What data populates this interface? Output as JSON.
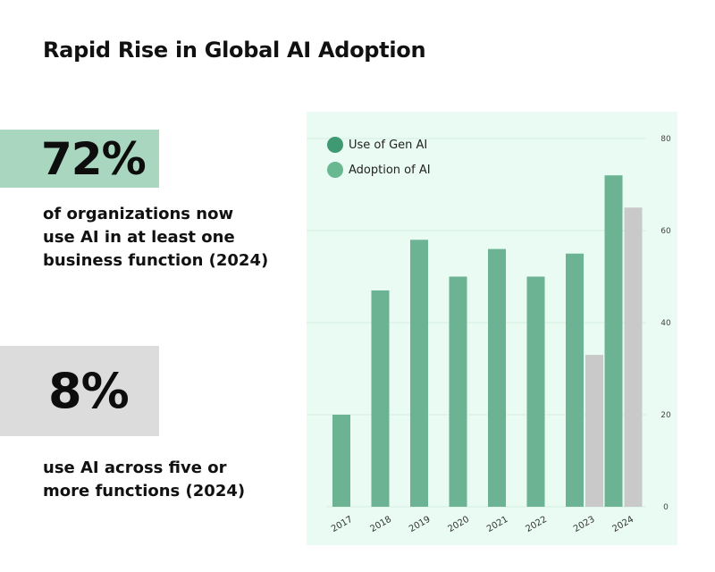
{
  "title": "Rapid Rise in Global AI Adoption",
  "stats": [
    {
      "value": "72%",
      "description_lines": [
        "of organizations now",
        "use AI in at least one",
        "business function (2024)"
      ],
      "box_color": "#a9d6bf"
    },
    {
      "value": "8%",
      "description_lines": [
        "use AI across five or",
        "more functions (2024)"
      ],
      "box_color": "#dcdcdc"
    }
  ],
  "colors": {
    "panel_bg": "#e9fbf2",
    "gen_ai_legend": "#3f9a74",
    "adoption_legend": "#6ab892",
    "green_bar": "#6bb393",
    "gray_bar": "#c9c9c9",
    "grid": "#d5efe2"
  },
  "chart_data": {
    "type": "bar",
    "title": "",
    "xlabel": "",
    "ylabel": "",
    "categories": [
      "2017",
      "2018",
      "2019",
      "2020",
      "2021",
      "2022",
      "2023",
      "2024"
    ],
    "series": [
      {
        "name": "Adoption of AI",
        "color": "#6bb393",
        "values": [
          20,
          47,
          58,
          50,
          56,
          50,
          55,
          72
        ]
      },
      {
        "name": "Use of Gen AI",
        "color": "#c9c9c9",
        "values": [
          null,
          null,
          null,
          null,
          null,
          null,
          33,
          65
        ]
      }
    ],
    "legend": [
      {
        "label": "Use of Gen AI",
        "color": "#3f9a74"
      },
      {
        "label": "Adoption of AI",
        "color": "#6ab892"
      }
    ],
    "legend_position": "top-left",
    "y_axis_position": "right",
    "ylim": [
      0,
      80
    ],
    "yticks": [
      0,
      20,
      40,
      60,
      80
    ],
    "grid": true
  }
}
